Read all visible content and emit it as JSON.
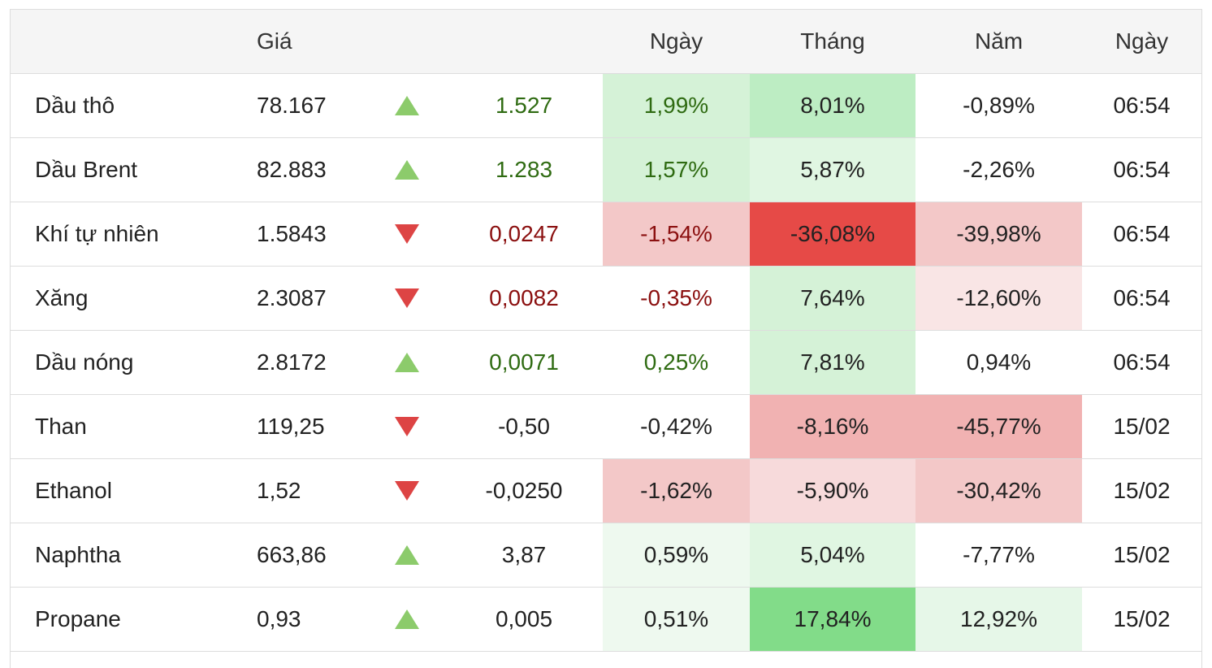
{
  "header": {
    "col_name": "",
    "col_price": "Giá",
    "col_change": "",
    "col_day": "Ngày",
    "col_month": "Tháng",
    "col_year": "Năm",
    "col_time": "Ngày"
  },
  "colors": {
    "up_arrow": "#8ccb6b",
    "down_arrow": "#dd4444",
    "positive_text": "#2f6b12",
    "negative_text": "#8b1010"
  },
  "rows": [
    {
      "name": "Dầu thô",
      "price": "78.167",
      "direction": "up",
      "change": "1.527",
      "change_color": "pos",
      "day": "1,99%",
      "day_color": "pos",
      "day_bg": "#d5f2d7",
      "month": "8,01%",
      "month_bg": "#bdedc3",
      "year": "-0,89%",
      "year_bg": "#ffffff",
      "time": "06:54"
    },
    {
      "name": "Dầu Brent",
      "price": "82.883",
      "direction": "up",
      "change": "1.283",
      "change_color": "pos",
      "day": "1,57%",
      "day_color": "pos",
      "day_bg": "#d5f2d7",
      "month": "5,87%",
      "month_bg": "#e0f6e2",
      "year": "-2,26%",
      "year_bg": "#ffffff",
      "time": "06:54"
    },
    {
      "name": "Khí tự nhiên",
      "price": "1.5843",
      "direction": "down",
      "change": "0,0247",
      "change_color": "neg",
      "day": "-1,54%",
      "day_color": "neg",
      "day_bg": "#f3c8c8",
      "month": "-36,08%",
      "month_bg": "#e64a47",
      "year": "-39,98%",
      "year_bg": "#f3c8c8",
      "time": "06:54"
    },
    {
      "name": "Xăng",
      "price": "2.3087",
      "direction": "down",
      "change": "0,0082",
      "change_color": "neg",
      "day": "-0,35%",
      "day_color": "neg",
      "day_bg": "#ffffff",
      "month": "7,64%",
      "month_bg": "#d5f2d7",
      "year": "-12,60%",
      "year_bg": "#f9e5e5",
      "time": "06:54"
    },
    {
      "name": "Dầu nóng",
      "price": "2.8172",
      "direction": "up",
      "change": "0,0071",
      "change_color": "pos",
      "day": "0,25%",
      "day_color": "pos",
      "day_bg": "#ffffff",
      "month": "7,81%",
      "month_bg": "#d5f2d7",
      "year": "0,94%",
      "year_bg": "#ffffff",
      "time": "06:54"
    },
    {
      "name": "Than",
      "price": "119,25",
      "direction": "down",
      "change": "-0,50",
      "change_color": "plain",
      "day": "-0,42%",
      "day_color": "plain",
      "day_bg": "#ffffff",
      "month": "-8,16%",
      "month_bg": "#f1b2b2",
      "year": "-45,77%",
      "year_bg": "#f1b2b2",
      "time": "15/02"
    },
    {
      "name": "Ethanol",
      "price": "1,52",
      "direction": "down",
      "change": "-0,0250",
      "change_color": "plain",
      "day": "-1,62%",
      "day_color": "plain",
      "day_bg": "#f3c8c8",
      "month": "-5,90%",
      "month_bg": "#f7dadb",
      "year": "-30,42%",
      "year_bg": "#f3c8c8",
      "time": "15/02"
    },
    {
      "name": "Naphtha",
      "price": "663,86",
      "direction": "up",
      "change": "3,87",
      "change_color": "plain",
      "day": "0,59%",
      "day_color": "plain",
      "day_bg": "#eef9ef",
      "month": "5,04%",
      "month_bg": "#e0f6e2",
      "year": "-7,77%",
      "year_bg": "#ffffff",
      "time": "15/02"
    },
    {
      "name": "Propane",
      "price": "0,93",
      "direction": "up",
      "change": "0,005",
      "change_color": "plain",
      "day": "0,51%",
      "day_color": "plain",
      "day_bg": "#eef9ef",
      "month": "17,84%",
      "month_bg": "#82dc89",
      "year": "12,92%",
      "year_bg": "#e6f7e8",
      "time": "15/02"
    }
  ]
}
